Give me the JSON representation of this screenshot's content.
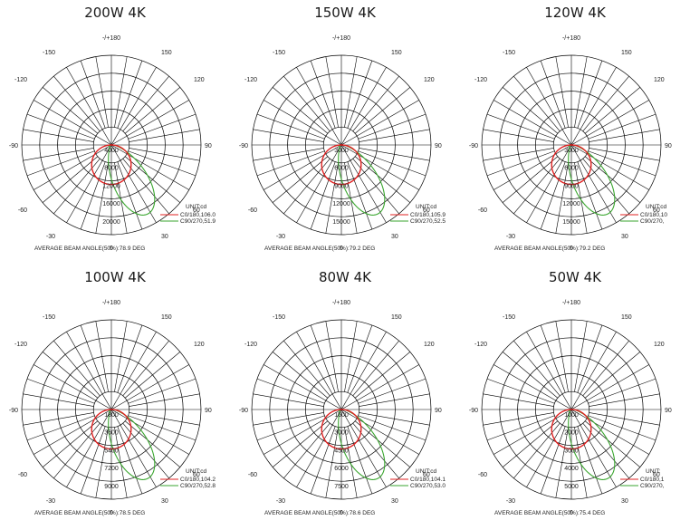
{
  "colors": {
    "c0": "#e02020",
    "c90": "#3aa62f",
    "grid": "#000000"
  },
  "chart_data": [
    {
      "type": "polar",
      "title": "200W 4K",
      "angle_labels": [
        "-/+180",
        "150",
        "120",
        "90",
        "60",
        "30",
        "0",
        "-30",
        "-60",
        "-90",
        "-120",
        "-150"
      ],
      "radial_ticks": [
        "4000",
        "8000",
        "12000",
        "16000",
        "20000"
      ],
      "rmax": 20000,
      "unit": "UNIT:cd",
      "series": [
        {
          "name": "C0/180,106.0",
          "values": []
        },
        {
          "name": "C90/270,51.9",
          "values": []
        }
      ],
      "footer": "AVERAGE BEAM ANGLE(50%):78.9 DEG"
    },
    {
      "type": "polar",
      "title": "150W 4K",
      "angle_labels": [
        "-/+180",
        "150",
        "120",
        "90",
        "60",
        "30",
        "0",
        "-30",
        "-60",
        "-90",
        "-120",
        "-150"
      ],
      "radial_ticks": [
        "3000",
        "6000",
        "9000",
        "12000",
        "15000"
      ],
      "rmax": 15000,
      "unit": "UNIT:cd",
      "series": [
        {
          "name": "C0/180,105.9",
          "values": []
        },
        {
          "name": "C90/270,52.5",
          "values": []
        }
      ],
      "footer": "AVERAGE BEAM ANGLE(50%):79.2 DEG"
    },
    {
      "type": "polar",
      "title": "120W 4K",
      "angle_labels": [
        "-/+180",
        "150",
        "120",
        "90",
        "60",
        "30",
        "0",
        "-30",
        "-60",
        "-90",
        "-120",
        "-150"
      ],
      "radial_ticks": [
        "3000",
        "6000",
        "9000",
        "12000",
        "15000"
      ],
      "rmax": 15000,
      "unit": "UNIT:cd",
      "series": [
        {
          "name": "C0/180,10",
          "values": []
        },
        {
          "name": "C90/270,",
          "values": []
        }
      ],
      "footer": "AVERAGE BEAM ANGLE(50%):79.2 DEG"
    },
    {
      "type": "polar",
      "title": "100W 4K",
      "angle_labels": [
        "-/+180",
        "150",
        "120",
        "90",
        "60",
        "30",
        "0",
        "-30",
        "-60",
        "-90",
        "-120",
        "-150"
      ],
      "radial_ticks": [
        "1800",
        "3600",
        "5400",
        "7200",
        "9000"
      ],
      "rmax": 9000,
      "unit": "UNIT:cd",
      "series": [
        {
          "name": "C0/180,104.2",
          "values": []
        },
        {
          "name": "C90/270,52.8",
          "values": []
        }
      ],
      "footer": "AVERAGE BEAM ANGLE(50%):78.5 DEG"
    },
    {
      "type": "polar",
      "title": "80W 4K",
      "angle_labels": [
        "-/+180",
        "150",
        "120",
        "90",
        "60",
        "30",
        "0",
        "-30",
        "-60",
        "-90",
        "-120",
        "-150"
      ],
      "radial_ticks": [
        "1500",
        "3000",
        "4500",
        "6000",
        "7500"
      ],
      "rmax": 7500,
      "unit": "UNIT:cd",
      "series": [
        {
          "name": "C0/180,104.1",
          "values": []
        },
        {
          "name": "C90/270,53.0",
          "values": []
        }
      ],
      "footer": "AVERAGE BEAM ANGLE(50%):78.6 DEG"
    },
    {
      "type": "polar",
      "title": "50W 4K",
      "angle_labels": [
        "-/+180",
        "150",
        "120",
        "90",
        "60",
        "30",
        "0",
        "-30",
        "-60",
        "-90",
        "-120",
        "-150"
      ],
      "radial_ticks": [
        "1000",
        "2000",
        "3000",
        "4000",
        "5000"
      ],
      "rmax": 5000,
      "unit": "UNIT:",
      "series": [
        {
          "name": "C0/180,1",
          "values": []
        },
        {
          "name": "C90/270,",
          "values": []
        }
      ],
      "footer": "AVERAGE BEAM ANGLE(50%):75.4 DEG"
    }
  ]
}
